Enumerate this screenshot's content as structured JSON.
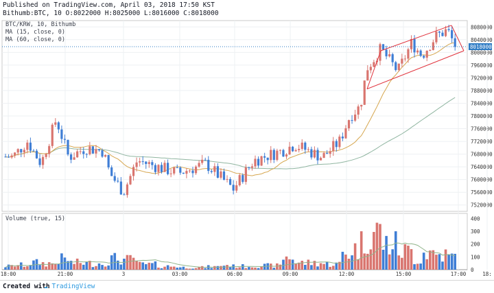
{
  "header": {
    "published_line": "Published on TradingView.com, April 03, 2018 17:50 KST",
    "ohlc_line": "Bithumb:BTC, 10 O:8022000 H:8025000 L:8016000 C:8018000"
  },
  "legend": {
    "symbol": "BTC/KRW, 10, Bithumb",
    "ma15": "MA (15, close, 0)",
    "ma60": "MA (60, close, 0)",
    "volume": "Volume (true, 15)"
  },
  "colors": {
    "up": "#d9756f",
    "down": "#3f7ed5",
    "ma15": "#d6a64e",
    "ma60": "#8fb5a0",
    "channel": "#e0303a",
    "price_tag": "#2e7bc4",
    "vol_ma": "#8fb48a"
  },
  "price_axis": {
    "labels": [
      "8080000",
      "8040000",
      "8000000",
      "7960000",
      "7920000",
      "7880000",
      "7840000",
      "7800000",
      "7760000",
      "7720000",
      "7680000",
      "7640000",
      "7600000",
      "7560000",
      "7520000"
    ],
    "last_price": "8018000"
  },
  "volume_axis": {
    "labels": [
      "400",
      "300",
      "200",
      "100",
      "0"
    ]
  },
  "time_axis": {
    "labels": [
      "18:00",
      "21:00",
      "3",
      "03:00",
      "06:00",
      "09:00",
      "12:00",
      "15:00",
      "17:00",
      "18:"
    ]
  },
  "footer": {
    "created_with": "Created with",
    "brand": "TradingView"
  },
  "chart_data": {
    "type": "candlestick",
    "symbol": "BTC/KRW",
    "interval": "10",
    "exchange": "Bithumb",
    "price_range": [
      7500000,
      8100000
    ],
    "volume_range": [
      0,
      440
    ],
    "segments": [
      {
        "x": [
          0,
          18
        ],
        "price": [
          7672000,
          7672000
        ],
        "vol": 30
      },
      {
        "x": [
          18,
          40
        ],
        "price": [
          7670000,
          7720000
        ],
        "vol": 40
      },
      {
        "x": [
          40,
          60
        ],
        "price": [
          7720000,
          7650000
        ],
        "vol": 60
      },
      {
        "x": [
          60,
          82
        ],
        "price": [
          7650000,
          7790000
        ],
        "vol": 55
      },
      {
        "x": [
          82,
          100
        ],
        "price": [
          7790000,
          7670000
        ],
        "vol": 90
      },
      {
        "x": [
          100,
          125
        ],
        "price": [
          7670000,
          7700000
        ],
        "vol": 60
      },
      {
        "x": [
          125,
          150
        ],
        "price": [
          7700000,
          7690000
        ],
        "vol": 55
      },
      {
        "x": [
          150,
          160
        ],
        "price": [
          7690000,
          7620000
        ],
        "vol": 70
      },
      {
        "x": [
          160,
          180
        ],
        "price": [
          7620000,
          7560000
        ],
        "vol": 95
      },
      {
        "x": [
          180,
          200
        ],
        "price": [
          7560000,
          7660000
        ],
        "vol": 85
      },
      {
        "x": [
          200,
          230
        ],
        "price": [
          7660000,
          7640000
        ],
        "vol": 45
      },
      {
        "x": [
          230,
          260
        ],
        "price": [
          7640000,
          7620000
        ],
        "vol": 30
      },
      {
        "x": [
          260,
          300
        ],
        "price": [
          7620000,
          7650000
        ],
        "vol": 20
      },
      {
        "x": [
          300,
          320
        ],
        "price": [
          7650000,
          7610000
        ],
        "vol": 25
      },
      {
        "x": [
          320,
          340
        ],
        "price": [
          7610000,
          7570000
        ],
        "vol": 40
      },
      {
        "x": [
          340,
          370
        ],
        "price": [
          7570000,
          7660000
        ],
        "vol": 30
      },
      {
        "x": [
          370,
          410
        ],
        "price": [
          7660000,
          7690000
        ],
        "vol": 35
      },
      {
        "x": [
          410,
          430
        ],
        "price": [
          7690000,
          7710000
        ],
        "vol": 110
      },
      {
        "x": [
          430,
          470
        ],
        "price": [
          7710000,
          7670000
        ],
        "vol": 60
      },
      {
        "x": [
          470,
          495
        ],
        "price": [
          7670000,
          7720000
        ],
        "vol": 50
      },
      {
        "x": [
          495,
          510
        ],
        "price": [
          7720000,
          7800000
        ],
        "vol": 140
      },
      {
        "x": [
          510,
          525
        ],
        "price": [
          7800000,
          7830000
        ],
        "vol": 180
      },
      {
        "x": [
          525,
          535
        ],
        "price": [
          7830000,
          7950000
        ],
        "vol": 230
      },
      {
        "x": [
          535,
          555
        ],
        "price": [
          7950000,
          8010000
        ],
        "vol": 330
      },
      {
        "x": [
          555,
          580
        ],
        "price": [
          8010000,
          7940000
        ],
        "vol": 220
      },
      {
        "x": [
          580,
          600
        ],
        "price": [
          7940000,
          8030000
        ],
        "vol": 160
      },
      {
        "x": [
          600,
          615
        ],
        "price": [
          8030000,
          7990000
        ],
        "vol": 90
      },
      {
        "x": [
          615,
          635
        ],
        "price": [
          7990000,
          8050000
        ],
        "vol": 150
      },
      {
        "x": [
          635,
          652
        ],
        "price": [
          8050000,
          8070000
        ],
        "vol": 130
      },
      {
        "x": [
          652,
          664
        ],
        "price": [
          8070000,
          8018000
        ],
        "vol": 110
      }
    ]
  }
}
